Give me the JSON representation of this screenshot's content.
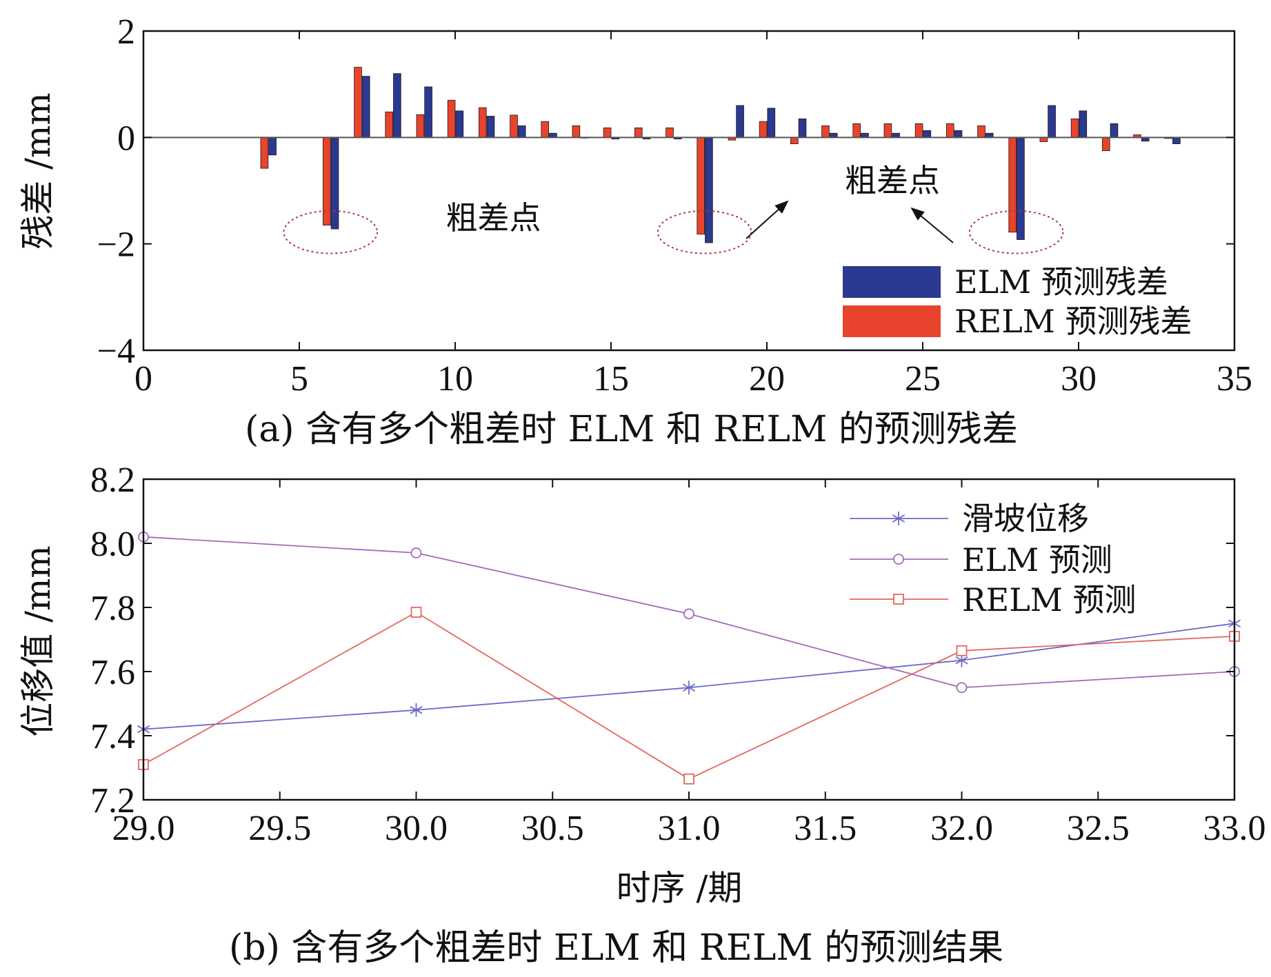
{
  "chart_data": [
    {
      "id": "a",
      "type": "bar",
      "caption": "(a) 含有多个粗差时 ELM 和 RELM 的预测残差",
      "ylabel": "残差 /mm",
      "xlim": [
        0,
        35
      ],
      "ylim": [
        -4,
        2
      ],
      "xticks": [
        0,
        5,
        10,
        15,
        20,
        25,
        30,
        35
      ],
      "yticks": [
        2,
        0,
        -2,
        -4
      ],
      "ytick_labels": [
        "2",
        "0",
        "−2",
        "−4"
      ],
      "x": [
        4,
        6,
        7,
        8,
        9,
        10,
        11,
        12,
        13,
        14,
        15,
        16,
        17,
        18,
        19,
        20,
        21,
        22,
        23,
        24,
        25,
        26,
        27,
        28,
        29,
        30,
        31,
        32,
        33
      ],
      "series": [
        {
          "name": "ELM 预测残差",
          "color": "#2b3990",
          "values": [
            -0.33,
            -1.72,
            1.15,
            1.2,
            0.95,
            0.5,
            0.4,
            0.22,
            0.08,
            0.0,
            -0.03,
            -0.03,
            -0.03,
            -1.98,
            0.6,
            0.55,
            0.35,
            0.08,
            0.08,
            0.08,
            0.13,
            0.13,
            0.08,
            -1.92,
            0.6,
            0.5,
            0.26,
            -0.07,
            -0.12
          ]
        },
        {
          "name": "RELM 预测残差",
          "color": "#e8432d",
          "values": [
            -0.58,
            -1.65,
            1.32,
            0.48,
            0.43,
            0.7,
            0.56,
            0.42,
            0.3,
            0.22,
            0.18,
            0.18,
            0.18,
            -1.82,
            -0.05,
            0.3,
            -0.12,
            0.22,
            0.26,
            0.26,
            0.26,
            0.26,
            0.22,
            -1.78,
            -0.08,
            0.35,
            -0.25,
            0.05,
            -0.02
          ]
        }
      ],
      "legend_position": "bottom-right",
      "annotations": [
        {
          "text": "粗差点",
          "x": 9.7,
          "y": -1.72
        },
        {
          "text": "粗差点",
          "x": 22.5,
          "y": -1.02
        }
      ],
      "outlier_points": [
        6,
        18,
        28
      ]
    },
    {
      "id": "b",
      "type": "line",
      "caption": "(b) 含有多个粗差时 ELM 和 RELM 的预测结果",
      "xlabel": "时序 /期",
      "ylabel": "位移值 /mm",
      "xlim": [
        29.0,
        33.0
      ],
      "ylim": [
        7.2,
        8.2
      ],
      "xticks": [
        29.0,
        29.5,
        30.0,
        30.5,
        31.0,
        31.5,
        32.0,
        32.5,
        33.0
      ],
      "yticks": [
        7.2,
        7.4,
        7.6,
        7.8,
        8.0,
        8.2
      ],
      "x": [
        29,
        30,
        31,
        32,
        33
      ],
      "series": [
        {
          "name": "滑坡位移",
          "color": "#6a6ac8",
          "marker": "star",
          "values": [
            7.42,
            7.48,
            7.55,
            7.635,
            7.75
          ]
        },
        {
          "name": "ELM 预测",
          "color": "#a56ab9",
          "marker": "circle",
          "values": [
            8.02,
            7.97,
            7.78,
            7.55,
            7.6
          ]
        },
        {
          "name": "RELM 预测",
          "color": "#e46660",
          "marker": "square",
          "values": [
            7.31,
            7.785,
            7.265,
            7.665,
            7.71
          ]
        }
      ],
      "legend_position": "top-right"
    }
  ]
}
